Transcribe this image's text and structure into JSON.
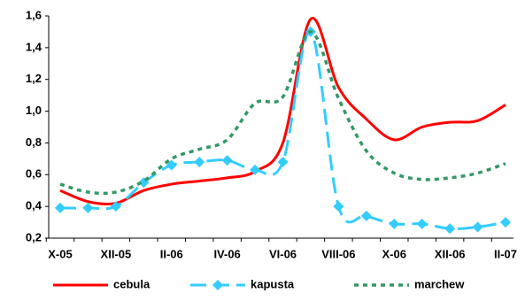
{
  "chart_data": {
    "type": "line",
    "categories": [
      "X-05",
      null,
      "XII-05",
      null,
      "II-06",
      null,
      "IV-06",
      null,
      "VI-06",
      null,
      "VIII-06",
      null,
      "X-06",
      null,
      "XII-06",
      null,
      "II-07"
    ],
    "series": [
      {
        "name": "cebula",
        "color": "#ff0000",
        "values": [
          0.5,
          0.43,
          0.42,
          0.5,
          0.54,
          0.56,
          0.58,
          0.62,
          0.8,
          1.58,
          1.15,
          0.95,
          0.82,
          0.9,
          0.93,
          0.94,
          1.04
        ]
      },
      {
        "name": "kapusta",
        "color": "#33ccff",
        "values": [
          0.39,
          0.39,
          0.4,
          0.55,
          0.66,
          0.68,
          0.69,
          0.63,
          0.68,
          1.5,
          0.4,
          0.34,
          0.29,
          0.29,
          0.26,
          0.27,
          0.3
        ]
      },
      {
        "name": "marchew",
        "color": "#339966",
        "values": [
          0.54,
          0.49,
          0.49,
          0.56,
          0.7,
          0.76,
          0.82,
          1.05,
          1.09,
          1.5,
          1.08,
          0.75,
          0.61,
          0.57,
          0.58,
          0.61,
          0.67
        ]
      }
    ],
    "ylim": [
      0.2,
      1.6
    ],
    "yticks": [
      {
        "value": 0.2,
        "label": "0,2"
      },
      {
        "value": 0.4,
        "label": "0,4"
      },
      {
        "value": 0.6,
        "label": "0,6"
      },
      {
        "value": 0.8,
        "label": "0,8"
      },
      {
        "value": 1.0,
        "label": "1,0"
      },
      {
        "value": 1.2,
        "label": "1,2"
      },
      {
        "value": 1.4,
        "label": "1,4"
      },
      {
        "value": 1.6,
        "label": "1,6"
      }
    ],
    "legend": "bottom"
  }
}
